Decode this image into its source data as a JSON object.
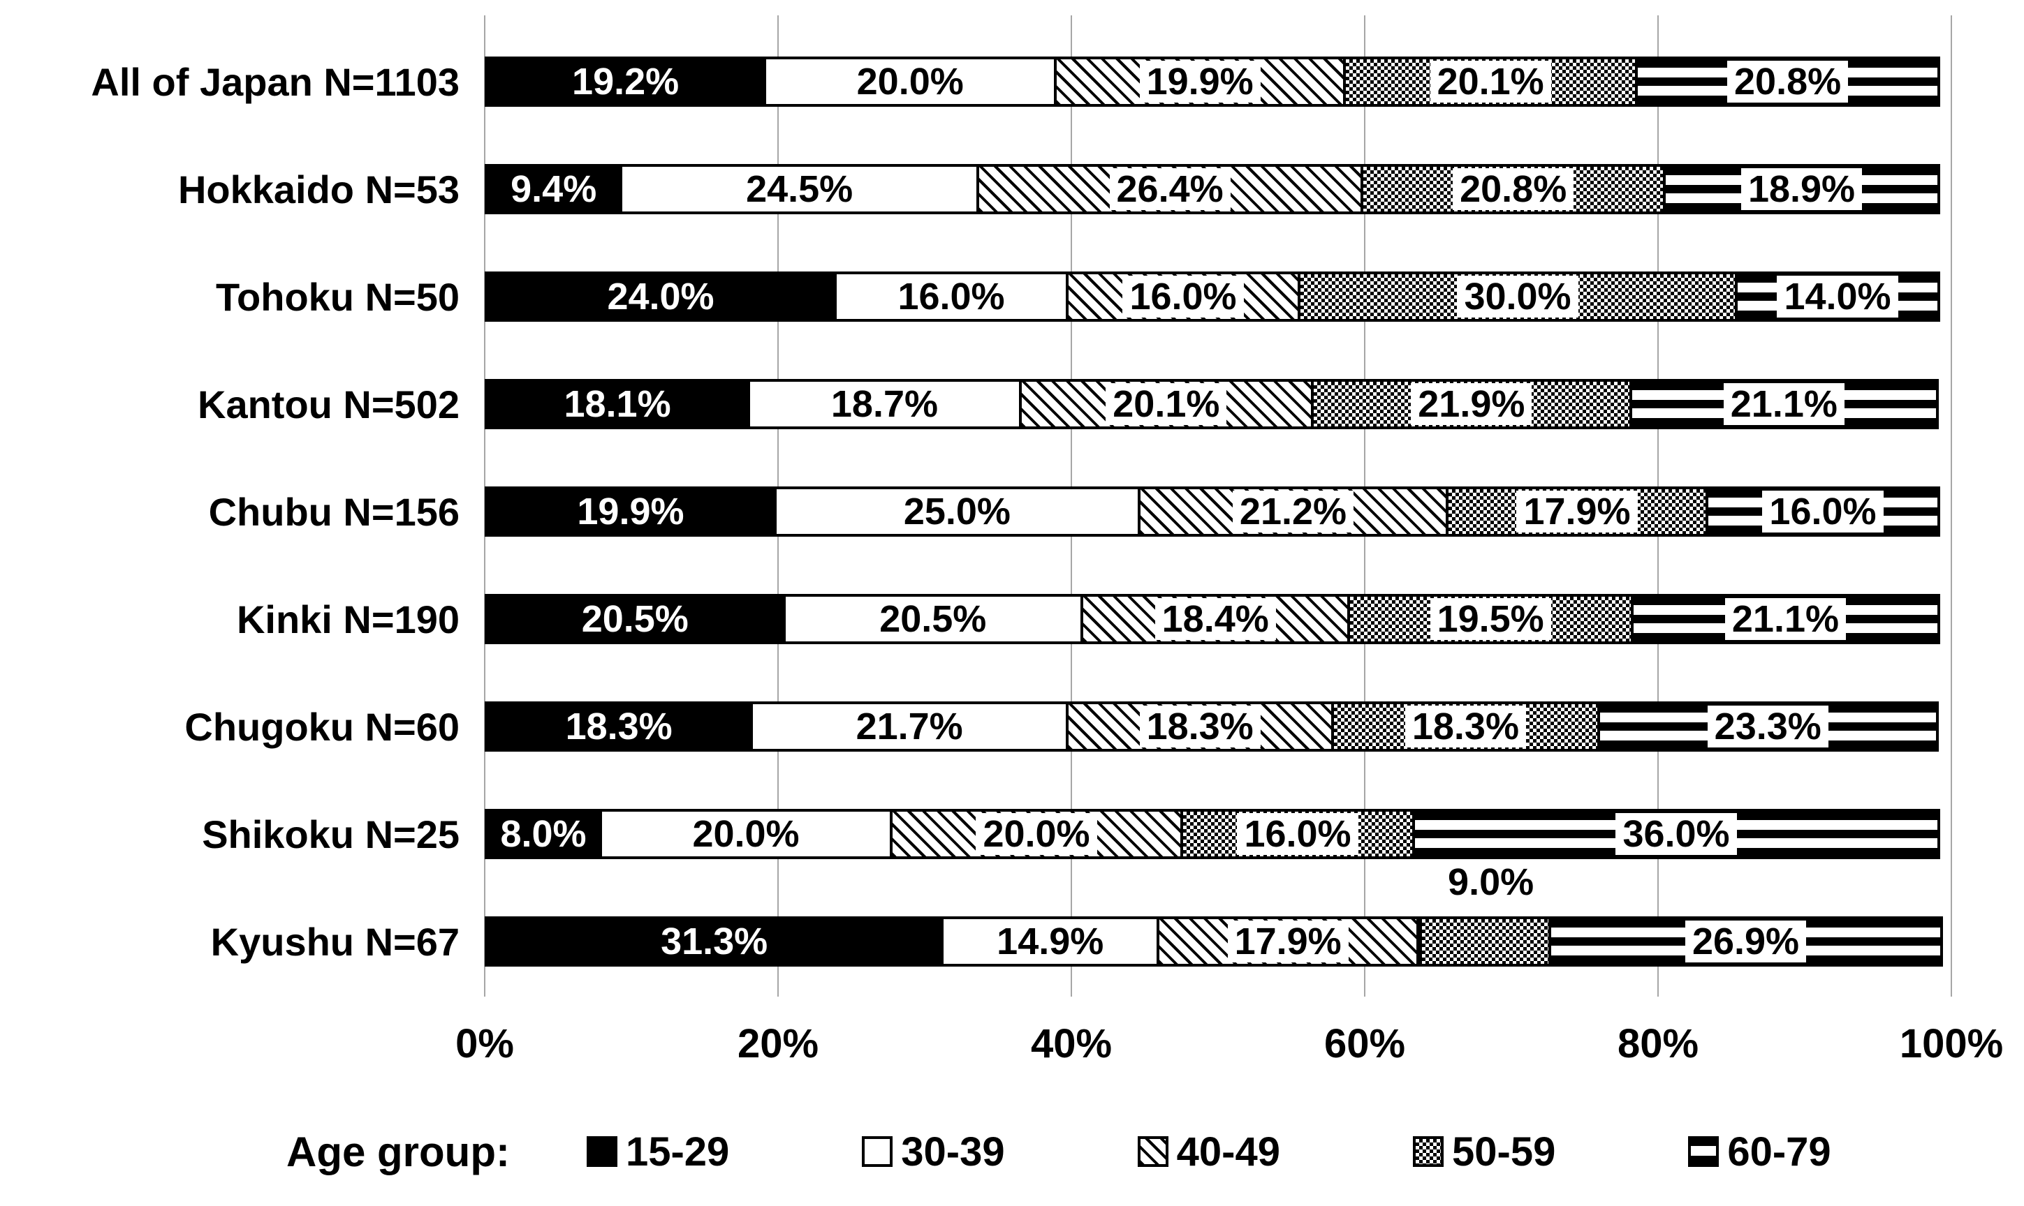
{
  "colors": {
    "foreground": "#000000",
    "background": "#ffffff",
    "gridline": "#a6a6a6"
  },
  "chart_data": {
    "type": "bar",
    "orientation": "horizontal",
    "stacked": true,
    "grid": true,
    "xlim": [
      0,
      100
    ],
    "x_ticks": [
      "0%",
      "20%",
      "40%",
      "60%",
      "80%",
      "100%"
    ],
    "legend_position": "bottom",
    "legend_title": "Age group:",
    "series": [
      {
        "name": "15-29",
        "pattern": "solid-black"
      },
      {
        "name": "30-39",
        "pattern": "white"
      },
      {
        "name": "40-49",
        "pattern": "diagonal-hatch"
      },
      {
        "name": "50-59",
        "pattern": "checkerboard"
      },
      {
        "name": "60-79",
        "pattern": "horizontal-stripes"
      }
    ],
    "rows": [
      {
        "label": "All of Japan N=1103",
        "values": [
          19.2,
          20.0,
          19.9,
          20.1,
          20.8
        ],
        "labels": [
          "19.2%",
          "20.0%",
          "19.9%",
          "20.1%",
          "20.8%"
        ]
      },
      {
        "label": "Hokkaido N=53",
        "values": [
          9.4,
          24.5,
          26.4,
          20.8,
          18.9
        ],
        "labels": [
          "9.4%",
          "24.5%",
          "26.4%",
          "20.8%",
          "18.9%"
        ]
      },
      {
        "label": "Tohoku N=50",
        "values": [
          24.0,
          16.0,
          16.0,
          30.0,
          14.0
        ],
        "labels": [
          "24.0%",
          "16.0%",
          "16.0%",
          "30.0%",
          "14.0%"
        ]
      },
      {
        "label": "Kantou N=502",
        "values": [
          18.1,
          18.7,
          20.1,
          21.9,
          21.1
        ],
        "labels": [
          "18.1%",
          "18.7%",
          "20.1%",
          "21.9%",
          "21.1%"
        ]
      },
      {
        "label": "Chubu N=156",
        "values": [
          19.9,
          25.0,
          21.2,
          17.9,
          16.0
        ],
        "labels": [
          "19.9%",
          "25.0%",
          "21.2%",
          "17.9%",
          "16.0%"
        ]
      },
      {
        "label": "Kinki N=190",
        "values": [
          20.5,
          20.5,
          18.4,
          19.5,
          21.1
        ],
        "labels": [
          "20.5%",
          "20.5%",
          "18.4%",
          "19.5%",
          "21.1%"
        ]
      },
      {
        "label": "Chugoku N=60",
        "values": [
          18.3,
          21.7,
          18.3,
          18.3,
          23.3
        ],
        "labels": [
          "18.3%",
          "21.7%",
          "18.3%",
          "18.3%",
          "23.3%"
        ]
      },
      {
        "label": "Shikoku N=25",
        "values": [
          8.0,
          20.0,
          20.0,
          16.0,
          36.0
        ],
        "labels": [
          "8.0%",
          "20.0%",
          "20.0%",
          "16.0%",
          "36.0%"
        ]
      },
      {
        "label": "Kyushu N=67",
        "values": [
          31.3,
          14.9,
          17.9,
          9.0,
          26.9
        ],
        "labels": [
          "31.3%",
          "14.9%",
          "17.9%",
          "9.0%",
          "26.9%"
        ],
        "outside_label_index": 3
      }
    ]
  }
}
